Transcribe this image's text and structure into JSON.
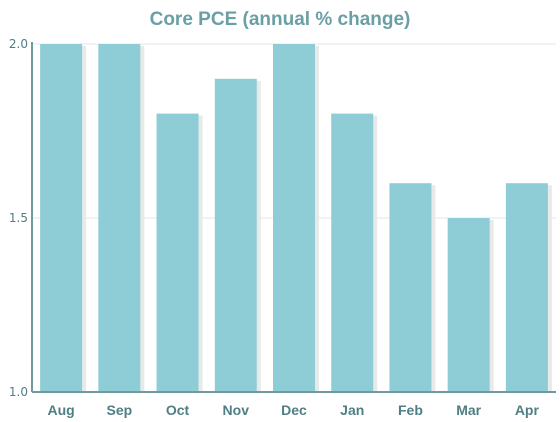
{
  "colors": {
    "title": "#6a9fa5",
    "bar": "#8ecdd5",
    "bar_shadow": "#e8eaea",
    "axis": "#6f9a9e",
    "grid": "#e2e6e7",
    "tick_text": "#4f7f84"
  },
  "chart_data": {
    "type": "bar",
    "title": "Core PCE (annual % change)",
    "xlabel": "",
    "ylabel": "",
    "categories": [
      "Aug",
      "Sep",
      "Oct",
      "Nov",
      "Dec",
      "Jan",
      "Feb",
      "Mar",
      "Apr"
    ],
    "values": [
      2.0,
      2.0,
      1.8,
      1.9,
      2.0,
      1.8,
      1.6,
      1.5,
      1.6
    ],
    "ylim": [
      1.0,
      2.0
    ],
    "yticks": [
      "1.0",
      "1.5",
      "2.0"
    ],
    "grid": true,
    "legend": "none"
  }
}
